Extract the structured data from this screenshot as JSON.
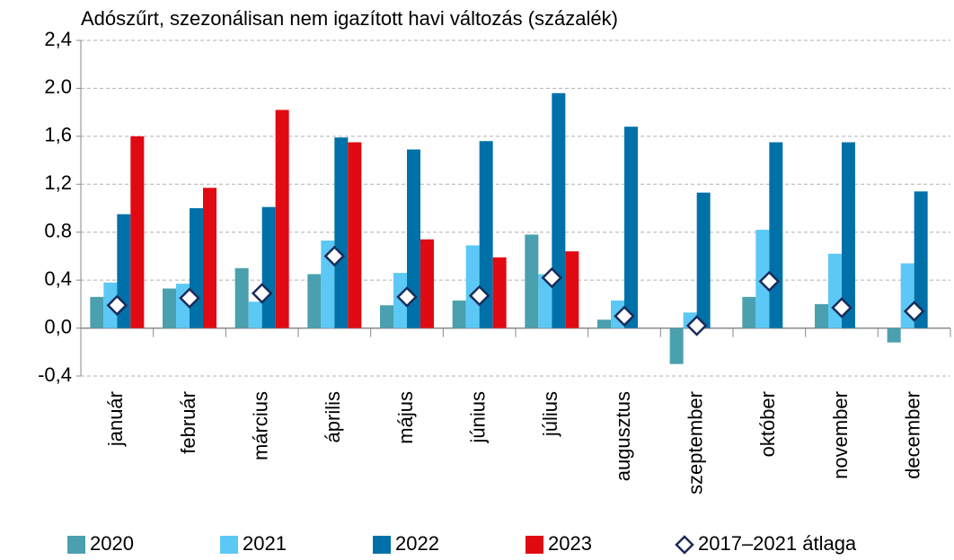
{
  "chart_data": {
    "type": "bar",
    "title": "Adószűrt, szezonálisan nem igazított havi változás (százalék)",
    "categories": [
      "január",
      "február",
      "március",
      "április",
      "május",
      "június",
      "július",
      "augusztus",
      "szeptember",
      "október",
      "november",
      "december"
    ],
    "series": [
      {
        "name": "2020",
        "color": "#4aa0ae",
        "values": [
          0.26,
          0.33,
          0.5,
          0.45,
          0.19,
          0.23,
          0.78,
          0.07,
          -0.3,
          0.26,
          0.2,
          -0.12
        ]
      },
      {
        "name": "2021",
        "color": "#5cc8f5",
        "values": [
          0.38,
          0.37,
          0.22,
          0.73,
          0.46,
          0.69,
          0.45,
          0.23,
          0.13,
          0.82,
          0.62,
          0.54
        ]
      },
      {
        "name": "2022",
        "color": "#0071a8",
        "values": [
          0.95,
          1.0,
          1.01,
          1.59,
          1.49,
          1.56,
          1.96,
          1.68,
          1.13,
          1.55,
          1.55,
          1.14
        ]
      },
      {
        "name": "2023",
        "color": "#e10a12",
        "values": [
          1.6,
          1.17,
          1.82,
          1.55,
          0.74,
          0.59,
          0.64,
          null,
          null,
          null,
          null,
          null
        ]
      },
      {
        "name": "2017–2021 átlaga",
        "color": "#1a2b5a",
        "marker": "diamond",
        "values": [
          0.19,
          0.25,
          0.29,
          0.6,
          0.26,
          0.27,
          0.42,
          0.1,
          0.02,
          0.39,
          0.17,
          0.14
        ]
      }
    ],
    "ylim": [
      -0.4,
      2.4
    ],
    "yticks": [
      {
        "value": -0.4,
        "label": "-0,4"
      },
      {
        "value": 0,
        "label": "0,0"
      },
      {
        "value": 0.4,
        "label": "0,4"
      },
      {
        "value": 0.8,
        "label": "0.8"
      },
      {
        "value": 1.2,
        "label": "1,2"
      },
      {
        "value": 1.6,
        "label": "1,6"
      },
      {
        "value": 2.0,
        "label": "2.0"
      },
      {
        "value": 2.4,
        "label": "2,4"
      }
    ],
    "grid": true
  }
}
